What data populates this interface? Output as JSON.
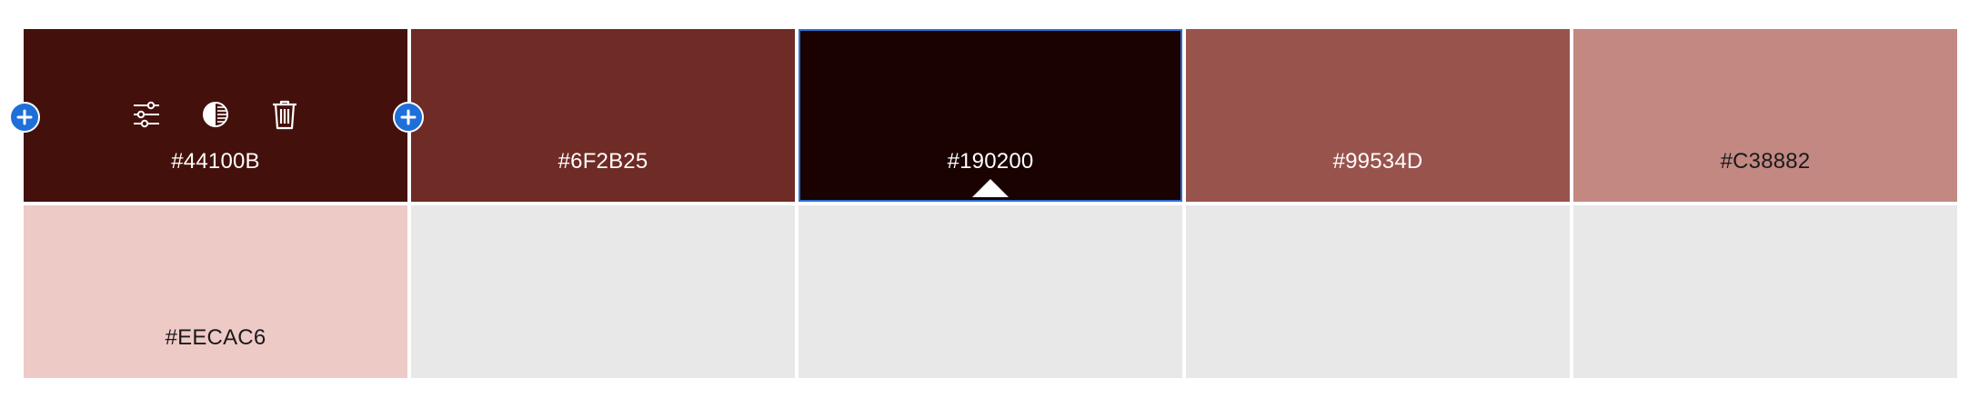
{
  "palette": {
    "swatches": [
      {
        "hex": "#44100B",
        "color": "#44100B",
        "text_tone": "light"
      },
      {
        "hex": "#6F2B25",
        "color": "#6F2B25",
        "text_tone": "light"
      },
      {
        "hex": "#190200",
        "color": "#190200",
        "text_tone": "light",
        "selected": true
      },
      {
        "hex": "#99534D",
        "color": "#99534D",
        "text_tone": "light"
      },
      {
        "hex": "#C38882",
        "color": "#C38882",
        "text_tone": "dark"
      },
      {
        "hex": "#EECAC6",
        "color": "#EECAC6",
        "text_tone": "dark"
      }
    ],
    "empty_slot_color": "#E8E8E8",
    "selection_border_color": "#2B6FD6",
    "add_button_color": "#1F6FD9",
    "hovered_swatch_tools": [
      "sliders-icon",
      "contrast-icon",
      "trash-icon"
    ]
  }
}
